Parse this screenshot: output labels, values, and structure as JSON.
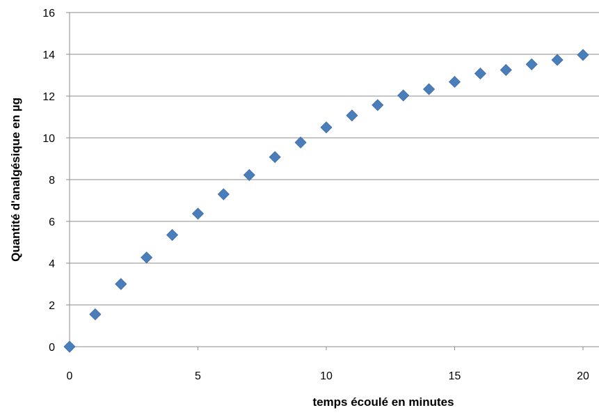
{
  "chart_data": {
    "type": "scatter",
    "title": "",
    "xlabel": "temps écoulé en minutes",
    "ylabel": "Quantité d'analgésique en µg",
    "xlim": [
      0,
      20
    ],
    "ylim": [
      0,
      16
    ],
    "xticks": [
      0,
      5,
      10,
      15,
      20
    ],
    "yticks": [
      0,
      2,
      4,
      6,
      8,
      10,
      12,
      14,
      16
    ],
    "grid": "horizontal",
    "legend": "none",
    "marker": "diamond",
    "color": "#4a7ebb",
    "series": [
      {
        "x": [
          0,
          1,
          2,
          3,
          4,
          5,
          6,
          7,
          8,
          9,
          10,
          11,
          12,
          13,
          14,
          15,
          16,
          17,
          18,
          19,
          20
        ],
        "y": [
          0,
          1.55,
          3.0,
          4.27,
          5.35,
          6.37,
          7.3,
          8.22,
          9.08,
          9.78,
          10.5,
          11.07,
          11.57,
          12.03,
          12.33,
          12.68,
          13.08,
          13.25,
          13.52,
          13.73,
          13.97
        ]
      }
    ]
  }
}
